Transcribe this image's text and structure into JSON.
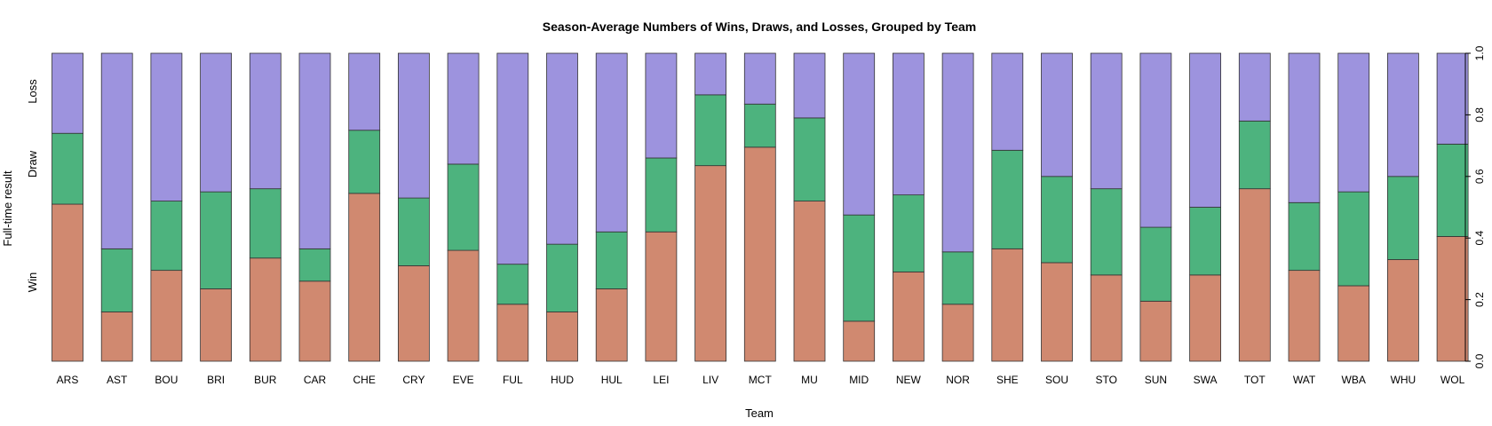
{
  "chart_data": {
    "type": "bar",
    "stacked": true,
    "title": "Season-Average Numbers of Wins, Draws, and Losses, Grouped by Team",
    "xlabel": "Team",
    "ylabel": "Full-time result",
    "ylim": [
      0,
      1
    ],
    "y_ticks": [
      "0.0",
      "0.2",
      "0.4",
      "0.6",
      "0.8",
      "1.0"
    ],
    "y_axis_side": "right",
    "left_side_labels": [
      "Win",
      "Draw",
      "Loss"
    ],
    "grid": false,
    "legend": "none",
    "categories": [
      "ARS",
      "AST",
      "BOU",
      "BRI",
      "BUR",
      "CAR",
      "CHE",
      "CRY",
      "EVE",
      "FUL",
      "HUD",
      "HUL",
      "LEI",
      "LIV",
      "MCT",
      "MU",
      "MID",
      "NEW",
      "NOR",
      "SHE",
      "SOU",
      "STO",
      "SUN",
      "SWA",
      "TOT",
      "WAT",
      "WBA",
      "WHU",
      "WOL"
    ],
    "series": [
      {
        "key": "win",
        "color": "#D08970",
        "values": [
          0.51,
          0.16,
          0.295,
          0.235,
          0.335,
          0.26,
          0.545,
          0.31,
          0.36,
          0.185,
          0.16,
          0.235,
          0.42,
          0.635,
          0.695,
          0.52,
          0.13,
          0.29,
          0.185,
          0.365,
          0.32,
          0.28,
          0.195,
          0.28,
          0.56,
          0.295,
          0.245,
          0.33,
          0.405
        ]
      },
      {
        "key": "draw",
        "color": "#4DB37E",
        "values": [
          0.23,
          0.205,
          0.225,
          0.315,
          0.225,
          0.105,
          0.205,
          0.22,
          0.28,
          0.13,
          0.22,
          0.185,
          0.24,
          0.23,
          0.14,
          0.27,
          0.345,
          0.25,
          0.17,
          0.32,
          0.28,
          0.28,
          0.24,
          0.22,
          0.22,
          0.22,
          0.305,
          0.27,
          0.3
        ]
      },
      {
        "key": "loss",
        "color": "#9D93DE",
        "values": [
          0.26,
          0.635,
          0.48,
          0.45,
          0.44,
          0.635,
          0.25,
          0.47,
          0.36,
          0.685,
          0.62,
          0.58,
          0.34,
          0.135,
          0.165,
          0.21,
          0.525,
          0.46,
          0.645,
          0.315,
          0.4,
          0.44,
          0.565,
          0.5,
          0.22,
          0.485,
          0.45,
          0.4,
          0.295
        ]
      }
    ]
  }
}
